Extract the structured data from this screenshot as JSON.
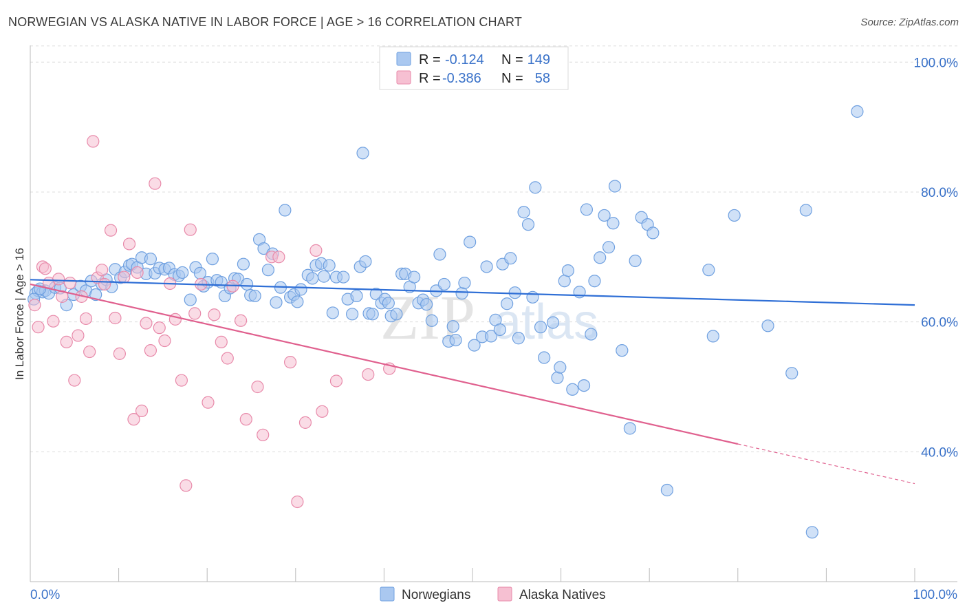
{
  "title": "NORWEGIAN VS ALASKA NATIVE IN LABOR FORCE | AGE > 16 CORRELATION CHART",
  "source": "Source: ZipAtlas.com",
  "watermark": {
    "zip": "ZIP",
    "atlas": "atlas"
  },
  "legend": {
    "rows": [
      {
        "r_label": "R =",
        "r_value": "-0.124",
        "n_label": "N =",
        "n_value": "149",
        "color": "#aac8f0",
        "stroke": "#6fa0e0"
      },
      {
        "r_label": "R =",
        "r_value": "-0.386",
        "n_label": "N =",
        "n_value": "58",
        "color": "#f6c0d2",
        "stroke": "#e88aaa"
      }
    ]
  },
  "bottom_legend": [
    {
      "label": "Norwegians",
      "color": "#aac8f0",
      "stroke": "#6fa0e0"
    },
    {
      "label": "Alaska Natives",
      "color": "#f6c0d2",
      "stroke": "#e88aaa"
    }
  ],
  "chart_data": {
    "type": "scatter",
    "title": "NORWEGIAN VS ALASKA NATIVE IN LABOR FORCE | AGE > 16 CORRELATION CHART",
    "xlabel": "",
    "ylabel": "In Labor Force | Age > 16",
    "xlim": [
      0,
      100
    ],
    "ylim": [
      20,
      103
    ],
    "x_tick_labels": [
      "0.0%",
      "100.0%"
    ],
    "y_ticks": [
      40,
      60,
      80,
      100
    ],
    "y_tick_labels": [
      "40.0%",
      "60.0%",
      "80.0%",
      "100.0%"
    ],
    "grid": true,
    "legend_placement": "top-center",
    "series": [
      {
        "name": "Norwegians",
        "color": "#6fa0e0",
        "fill": "#aac8f0",
        "trend": {
          "x": [
            0,
            100
          ],
          "y": [
            66.5,
            62.6
          ]
        },
        "points": [
          [
            0.6,
            64.4
          ],
          [
            0.9,
            64.8
          ],
          [
            1.4,
            64.6
          ],
          [
            1.7,
            64.8
          ],
          [
            2.1,
            64.4
          ],
          [
            2.8,
            65.3
          ],
          [
            3.4,
            65.2
          ],
          [
            4.1,
            62.6
          ],
          [
            4.9,
            64.2
          ],
          [
            5.7,
            65.5
          ],
          [
            6.3,
            64.8
          ],
          [
            6.9,
            66.3
          ],
          [
            7.4,
            64.2
          ],
          [
            8.1,
            65.8
          ],
          [
            8.6,
            66.5
          ],
          [
            9.2,
            65.4
          ],
          [
            9.6,
            68.1
          ],
          [
            10.2,
            66.8
          ],
          [
            10.7,
            67.7
          ],
          [
            11.2,
            68.7
          ],
          [
            11.5,
            68.9
          ],
          [
            12.1,
            68.4
          ],
          [
            12.6,
            69.9
          ],
          [
            13.1,
            67.4
          ],
          [
            13.6,
            69.7
          ],
          [
            14.1,
            67.5
          ],
          [
            14.6,
            68.3
          ],
          [
            15.2,
            68.1
          ],
          [
            15.7,
            68.3
          ],
          [
            16.3,
            67.3
          ],
          [
            16.8,
            67.1
          ],
          [
            17.2,
            67.6
          ],
          [
            18.1,
            63.4
          ],
          [
            18.7,
            68.4
          ],
          [
            19.2,
            67.5
          ],
          [
            19.6,
            65.5
          ],
          [
            20.1,
            66.1
          ],
          [
            20.6,
            69.7
          ],
          [
            21.1,
            66.4
          ],
          [
            21.6,
            66.1
          ],
          [
            22.0,
            64.0
          ],
          [
            22.6,
            65.2
          ],
          [
            23.1,
            66.7
          ],
          [
            23.5,
            66.6
          ],
          [
            24.1,
            68.9
          ],
          [
            24.5,
            65.8
          ],
          [
            24.9,
            64.1
          ],
          [
            25.4,
            64.0
          ],
          [
            25.9,
            72.7
          ],
          [
            26.4,
            71.3
          ],
          [
            26.9,
            68.0
          ],
          [
            27.4,
            70.5
          ],
          [
            27.8,
            63.0
          ],
          [
            28.3,
            65.3
          ],
          [
            28.8,
            77.2
          ],
          [
            29.4,
            63.8
          ],
          [
            29.8,
            64.2
          ],
          [
            30.2,
            63.1
          ],
          [
            30.6,
            65.0
          ],
          [
            31.4,
            67.2
          ],
          [
            31.9,
            66.7
          ],
          [
            32.3,
            68.7
          ],
          [
            32.9,
            69.0
          ],
          [
            33.2,
            67.0
          ],
          [
            33.8,
            68.7
          ],
          [
            34.2,
            61.4
          ],
          [
            34.6,
            66.9
          ],
          [
            35.4,
            66.9
          ],
          [
            35.9,
            63.5
          ],
          [
            36.4,
            61.2
          ],
          [
            36.9,
            64.0
          ],
          [
            37.3,
            68.5
          ],
          [
            37.9,
            69.3
          ],
          [
            38.3,
            61.3
          ],
          [
            38.7,
            61.2
          ],
          [
            39.1,
            64.3
          ],
          [
            39.7,
            62.9
          ],
          [
            40.1,
            63.5
          ],
          [
            40.5,
            62.9
          ],
          [
            40.8,
            60.9
          ],
          [
            41.4,
            61.2
          ],
          [
            42.0,
            67.4
          ],
          [
            42.4,
            67.4
          ],
          [
            42.9,
            65.4
          ],
          [
            43.4,
            66.9
          ],
          [
            43.9,
            62.9
          ],
          [
            44.4,
            63.4
          ],
          [
            44.8,
            62.7
          ],
          [
            45.4,
            60.2
          ],
          [
            45.9,
            64.8
          ],
          [
            46.3,
            70.4
          ],
          [
            46.8,
            65.8
          ],
          [
            47.3,
            57.0
          ],
          [
            47.8,
            59.3
          ],
          [
            48.1,
            57.2
          ],
          [
            48.8,
            64.4
          ],
          [
            49.1,
            66.0
          ],
          [
            49.7,
            72.3
          ],
          [
            50.2,
            56.4
          ],
          [
            51.1,
            57.7
          ],
          [
            51.6,
            68.5
          ],
          [
            52.1,
            57.8
          ],
          [
            52.6,
            60.3
          ],
          [
            53.1,
            58.8
          ],
          [
            53.4,
            68.9
          ],
          [
            53.9,
            62.8
          ],
          [
            54.3,
            69.8
          ],
          [
            54.8,
            64.5
          ],
          [
            55.2,
            57.5
          ],
          [
            55.8,
            76.9
          ],
          [
            56.3,
            75.0
          ],
          [
            56.8,
            63.8
          ],
          [
            57.1,
            80.7
          ],
          [
            57.7,
            59.2
          ],
          [
            58.1,
            54.5
          ],
          [
            59.1,
            59.9
          ],
          [
            59.6,
            51.4
          ],
          [
            59.9,
            53.0
          ],
          [
            60.4,
            66.3
          ],
          [
            60.8,
            67.9
          ],
          [
            61.3,
            49.6
          ],
          [
            62.1,
            64.6
          ],
          [
            62.6,
            50.2
          ],
          [
            62.9,
            77.3
          ],
          [
            63.4,
            58.1
          ],
          [
            63.8,
            66.3
          ],
          [
            64.4,
            69.9
          ],
          [
            64.9,
            76.4
          ],
          [
            65.4,
            71.5
          ],
          [
            65.9,
            75.2
          ],
          [
            66.1,
            80.9
          ],
          [
            66.9,
            55.6
          ],
          [
            67.8,
            43.6
          ],
          [
            68.4,
            69.4
          ],
          [
            69.1,
            76.1
          ],
          [
            69.8,
            75.0
          ],
          [
            70.4,
            73.7
          ],
          [
            72.0,
            34.1
          ],
          [
            76.7,
            68.0
          ],
          [
            77.2,
            57.8
          ],
          [
            79.6,
            76.4
          ],
          [
            83.4,
            59.4
          ],
          [
            86.1,
            52.1
          ],
          [
            87.7,
            77.2
          ],
          [
            88.4,
            27.6
          ],
          [
            93.5,
            92.4
          ],
          [
            37.6,
            86.0
          ],
          [
            0.4,
            63.5
          ],
          [
            1.1,
            65.1
          ]
        ]
      },
      {
        "name": "Alaska Natives",
        "color": "#e88aaa",
        "fill": "#f6c0d2",
        "trend": {
          "x": [
            0,
            80
          ],
          "y": [
            65.8,
            41.2
          ]
        },
        "trend_dashed": {
          "x": [
            80,
            100
          ],
          "y": [
            41.2,
            35.1
          ]
        },
        "points": [
          [
            0.5,
            62.6
          ],
          [
            0.9,
            59.2
          ],
          [
            1.4,
            68.5
          ],
          [
            1.7,
            68.2
          ],
          [
            2.1,
            66.0
          ],
          [
            2.6,
            60.1
          ],
          [
            3.2,
            66.6
          ],
          [
            3.6,
            63.9
          ],
          [
            4.1,
            56.9
          ],
          [
            4.5,
            66.0
          ],
          [
            5.0,
            51.0
          ],
          [
            5.4,
            57.9
          ],
          [
            5.8,
            63.9
          ],
          [
            6.3,
            60.5
          ],
          [
            6.7,
            55.4
          ],
          [
            7.1,
            87.8
          ],
          [
            7.6,
            66.8
          ],
          [
            8.1,
            68.0
          ],
          [
            8.4,
            65.8
          ],
          [
            9.1,
            74.1
          ],
          [
            9.6,
            60.6
          ],
          [
            10.1,
            55.1
          ],
          [
            10.6,
            66.9
          ],
          [
            11.2,
            72.0
          ],
          [
            11.7,
            45.0
          ],
          [
            12.1,
            67.6
          ],
          [
            12.6,
            46.3
          ],
          [
            13.1,
            59.8
          ],
          [
            13.6,
            55.6
          ],
          [
            14.1,
            81.3
          ],
          [
            14.6,
            59.1
          ],
          [
            15.2,
            57.1
          ],
          [
            15.8,
            65.9
          ],
          [
            16.4,
            60.4
          ],
          [
            17.1,
            51.0
          ],
          [
            17.6,
            34.8
          ],
          [
            18.1,
            74.2
          ],
          [
            18.6,
            61.3
          ],
          [
            19.3,
            65.8
          ],
          [
            20.1,
            47.6
          ],
          [
            20.8,
            61.1
          ],
          [
            21.6,
            56.9
          ],
          [
            22.3,
            54.4
          ],
          [
            22.9,
            65.5
          ],
          [
            23.8,
            60.2
          ],
          [
            24.4,
            45.0
          ],
          [
            25.7,
            50.0
          ],
          [
            26.3,
            42.6
          ],
          [
            27.3,
            70.0
          ],
          [
            28.1,
            70.0
          ],
          [
            29.4,
            53.8
          ],
          [
            30.2,
            32.3
          ],
          [
            31.1,
            44.5
          ],
          [
            32.3,
            71.0
          ],
          [
            33.0,
            46.2
          ],
          [
            34.6,
            50.9
          ],
          [
            38.2,
            51.9
          ],
          [
            40.6,
            52.8
          ]
        ]
      }
    ]
  }
}
